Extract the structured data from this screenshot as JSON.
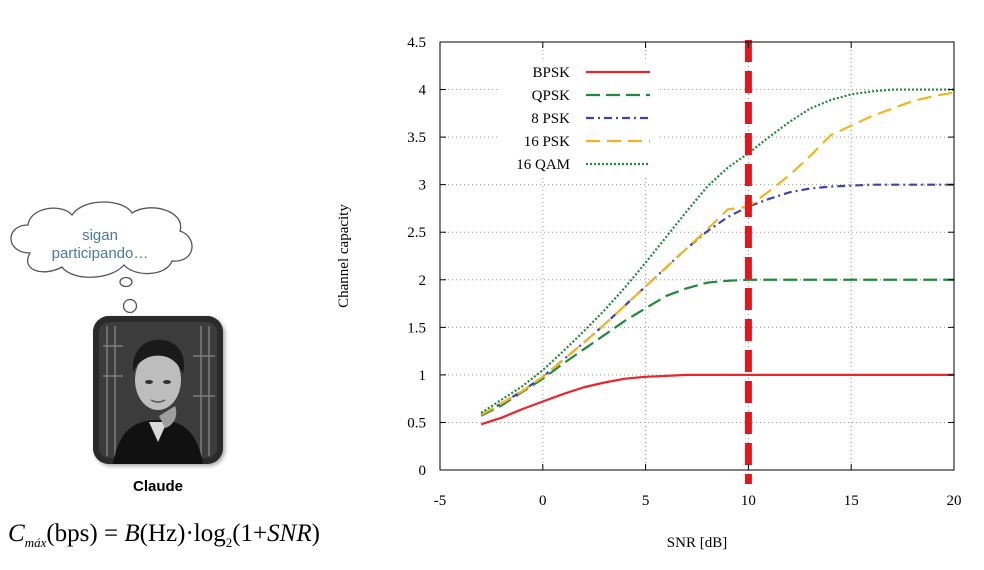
{
  "speech_bubble": {
    "line1": "sigan",
    "line2": "participando…"
  },
  "photo": {
    "label": "Claude"
  },
  "formula": {
    "c": "C",
    "c_sub": "máx",
    "lhs_arg": "(bps)",
    "equals": " = ",
    "b": "B",
    "b_arg": "(Hz)",
    "dot": "·",
    "log": "log",
    "log_sub": "2",
    "rhs_arg": "(1+",
    "snr": "SNR",
    "close": ")"
  },
  "chart_data": {
    "type": "line",
    "title": "",
    "xlabel": "SNR [dB]",
    "ylabel": "Channel capacity",
    "xlim": [
      -5,
      20
    ],
    "ylim": [
      0,
      4.5
    ],
    "xticks": [
      -5,
      0,
      5,
      10,
      15,
      20
    ],
    "yticks": [
      0,
      0.5,
      1,
      1.5,
      2,
      2.5,
      3,
      3.5,
      4,
      4.5
    ],
    "xtick_labels": [
      "-5",
      "0",
      "5",
      "10",
      "15",
      "20"
    ],
    "ytick_labels": [
      "0",
      "0.5",
      "1",
      "1.5",
      "2",
      "2.5",
      "3",
      "3.5",
      "4",
      "4.5"
    ],
    "grid": true,
    "legend": "top-left",
    "vline": {
      "x": 10,
      "color": "#e8141b"
    },
    "x": [
      -3,
      -2,
      -1,
      0,
      1,
      2,
      3,
      4,
      5,
      6,
      7,
      8,
      9,
      10,
      11,
      12,
      13,
      14,
      15,
      16,
      17,
      18,
      19,
      20
    ],
    "series": [
      {
        "name": "BPSK",
        "color": "#e8262b",
        "dash": "",
        "values": [
          0.48,
          0.55,
          0.64,
          0.72,
          0.8,
          0.87,
          0.92,
          0.96,
          0.98,
          0.99,
          1,
          1,
          1,
          1,
          1,
          1,
          1,
          1,
          1,
          1,
          1,
          1,
          1,
          1
        ]
      },
      {
        "name": "QPSK",
        "color": "#1e8a3a",
        "dash": "14,6",
        "values": [
          0.57,
          0.68,
          0.82,
          0.96,
          1.12,
          1.27,
          1.42,
          1.57,
          1.7,
          1.83,
          1.91,
          1.97,
          1.99,
          2,
          2,
          2,
          2,
          2,
          2,
          2,
          2,
          2,
          2,
          2
        ]
      },
      {
        "name": "8 PSK",
        "color": "#3a46a8",
        "dash": "8,4,2,4",
        "values": [
          0.58,
          0.7,
          0.83,
          0.98,
          1.16,
          1.34,
          1.53,
          1.73,
          1.93,
          2.13,
          2.33,
          2.51,
          2.66,
          2.77,
          2.85,
          2.92,
          2.96,
          2.98,
          2.99,
          3,
          3,
          3,
          3,
          3
        ]
      },
      {
        "name": "16 PSK",
        "color": "#f2b51e",
        "dash": "14,7",
        "values": [
          0.58,
          0.7,
          0.83,
          0.98,
          1.16,
          1.34,
          1.53,
          1.73,
          1.93,
          2.13,
          2.33,
          2.53,
          2.74,
          2.77,
          2.93,
          3.1,
          3.3,
          3.52,
          3.62,
          3.72,
          3.8,
          3.88,
          3.93,
          3.97
        ]
      },
      {
        "name": "16 QAM",
        "color": "#1e8a3a",
        "dash": "2,2",
        "values": [
          0.6,
          0.74,
          0.88,
          1.05,
          1.25,
          1.46,
          1.68,
          1.92,
          2.18,
          2.45,
          2.72,
          2.98,
          3.18,
          3.33,
          3.5,
          3.66,
          3.8,
          3.89,
          3.95,
          3.98,
          4,
          4,
          4,
          4
        ]
      }
    ]
  }
}
